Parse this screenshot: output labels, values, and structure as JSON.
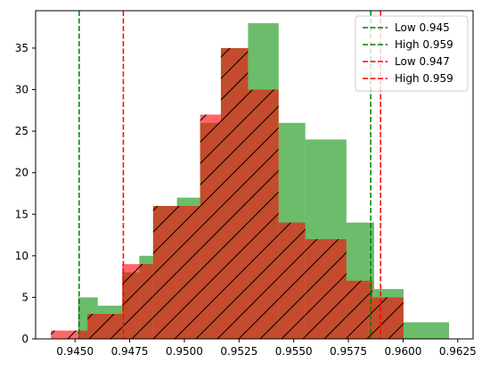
{
  "chart_data": {
    "type": "histogram",
    "xlim": [
      0.9432,
      0.9632
    ],
    "ylim": [
      0,
      39.5
    ],
    "xticks": [
      0.945,
      0.9475,
      0.95,
      0.9525,
      0.955,
      0.9575,
      0.96,
      0.9625
    ],
    "xtick_labels": [
      "0.9450",
      "0.9475",
      "0.9500",
      "0.9525",
      "0.9550",
      "0.9575",
      "0.9600",
      "0.9625"
    ],
    "yticks": [
      0,
      5,
      10,
      15,
      20,
      25,
      30,
      35
    ],
    "ytick_labels": [
      "0",
      "5",
      "10",
      "15",
      "20",
      "25",
      "30",
      "35"
    ],
    "series": [
      {
        "color": "#2ca02c",
        "alpha": 0.7,
        "hatch": false,
        "bins": [
          {
            "x0": 0.94514,
            "x1": 0.94534,
            "count": 5
          },
          {
            "x0": 0.94534,
            "x1": 0.94604,
            "count": 5
          },
          {
            "x0": 0.94604,
            "x1": 0.94716,
            "count": 4
          },
          {
            "x0": 0.94716,
            "x1": 0.94794,
            "count": 8
          },
          {
            "x0": 0.94794,
            "x1": 0.94857,
            "count": 10
          },
          {
            "x0": 0.94857,
            "x1": 0.94966,
            "count": 16
          },
          {
            "x0": 0.94966,
            "x1": 0.95072,
            "count": 17
          },
          {
            "x0": 0.95072,
            "x1": 0.95167,
            "count": 26
          },
          {
            "x0": 0.95167,
            "x1": 0.95291,
            "count": 35
          },
          {
            "x0": 0.95291,
            "x1": 0.95431,
            "count": 38
          },
          {
            "x0": 0.95431,
            "x1": 0.95553,
            "count": 26
          },
          {
            "x0": 0.95553,
            "x1": 0.95741,
            "count": 24
          },
          {
            "x0": 0.95741,
            "x1": 0.95847,
            "count": 14
          },
          {
            "x0": 0.95847,
            "x1": 0.95868,
            "count": 14
          },
          {
            "x0": 0.95868,
            "x1": 0.96002,
            "count": 6
          },
          {
            "x0": 0.96002,
            "x1": 0.9621,
            "count": 2
          }
        ]
      },
      {
        "color": "#ff0000",
        "alpha": 0.6,
        "hatch": true,
        "bins": [
          {
            "x0": 0.9439,
            "x1": 0.94557,
            "count": 1
          },
          {
            "x0": 0.94557,
            "x1": 0.94716,
            "count": 3
          },
          {
            "x0": 0.94716,
            "x1": 0.94794,
            "count": 9
          },
          {
            "x0": 0.94794,
            "x1": 0.94857,
            "count": 9
          },
          {
            "x0": 0.94857,
            "x1": 0.94966,
            "count": 16
          },
          {
            "x0": 0.94966,
            "x1": 0.95072,
            "count": 16
          },
          {
            "x0": 0.95072,
            "x1": 0.95167,
            "count": 27
          },
          {
            "x0": 0.95167,
            "x1": 0.95291,
            "count": 35
          },
          {
            "x0": 0.95291,
            "x1": 0.95431,
            "count": 30
          },
          {
            "x0": 0.95431,
            "x1": 0.95553,
            "count": 14
          },
          {
            "x0": 0.95553,
            "x1": 0.95741,
            "count": 12
          },
          {
            "x0": 0.95741,
            "x1": 0.95847,
            "count": 7
          },
          {
            "x0": 0.95847,
            "x1": 0.9586,
            "count": 7
          },
          {
            "x0": 0.9586,
            "x1": 0.96002,
            "count": 5
          }
        ]
      }
    ],
    "vlines": [
      {
        "x": 0.94519,
        "color": "#007f00",
        "label": "Low 0.945"
      },
      {
        "x": 0.95852,
        "color": "#007f00",
        "label": "High 0.959"
      },
      {
        "x": 0.94721,
        "color": "#ff0000",
        "label": "Low 0.947"
      },
      {
        "x": 0.95897,
        "color": "#ff0000",
        "label": "High 0.959"
      }
    ],
    "legend_placement": "top-right"
  }
}
